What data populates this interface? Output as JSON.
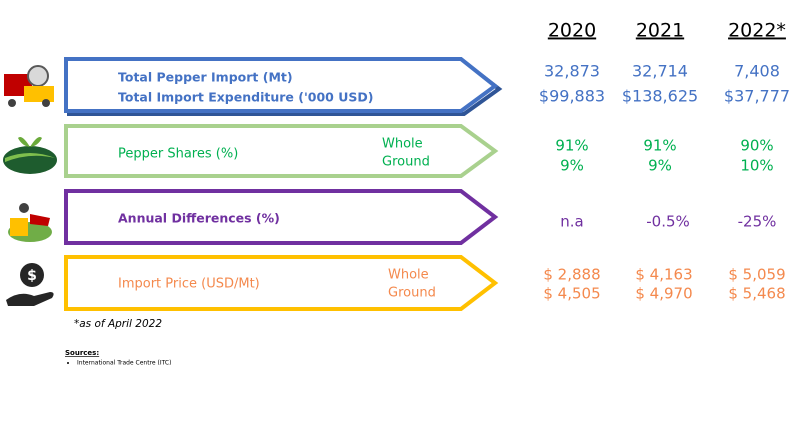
{
  "years": [
    "2020",
    "2021",
    "2022*"
  ],
  "rows": [
    {
      "labels": [
        "Total Pepper Import (Mt)",
        "Total Import Expenditure ('000 USD)"
      ],
      "values": [
        [
          "32,873",
          "32,714",
          "7,408"
        ],
        [
          "$99,883",
          "$138,625",
          "$37,777"
        ]
      ]
    },
    {
      "labels": [
        "Pepper Shares (%)"
      ],
      "sublabels": [
        "Whole",
        "Ground"
      ],
      "values": [
        [
          "91%",
          "91%",
          "90%"
        ],
        [
          "9%",
          "9%",
          "10%"
        ]
      ]
    },
    {
      "labels": [
        "Annual Differences (%)"
      ],
      "values": [
        [
          "n.a",
          "-0.5%",
          "-25%"
        ]
      ]
    },
    {
      "labels": [
        "Import Price (USD/Mt)"
      ],
      "sublabels": [
        "Whole",
        "Ground"
      ],
      "values": [
        [
          "$ 2,888",
          "$ 4,163",
          "$ 5,059"
        ],
        [
          "$ 4,505",
          "$ 4,970",
          "$ 5,468"
        ]
      ]
    }
  ],
  "note": "*as of April 2022",
  "sources": {
    "title": "Sources:",
    "items": [
      "International Trade Centre (ITC)"
    ]
  }
}
